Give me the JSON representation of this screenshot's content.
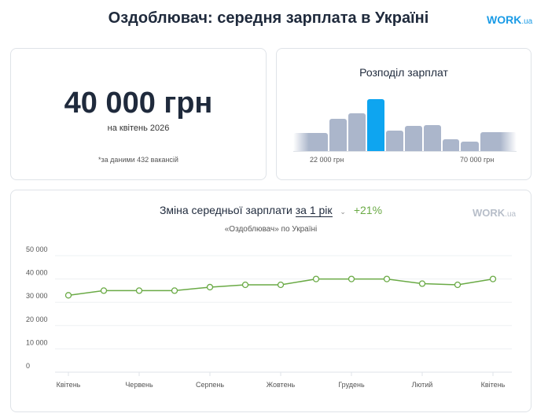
{
  "header": {
    "title": "Оздоблювач: середня зарплата в Україні",
    "logo": "WORK.ua"
  },
  "summary": {
    "amount": "40 000 грн",
    "period": "на квітень 2026",
    "note": "*за даними 432 вакансій"
  },
  "distribution": {
    "title": "Розподіл зарплат",
    "left_label": "22 000 грн",
    "right_label": "70 000 грн",
    "bars": [
      0.35,
      0.62,
      0.73,
      1.0,
      0.39,
      0.48,
      0.5,
      0.23,
      0.18,
      0.36
    ],
    "highlight_index": 3,
    "colors": {
      "bar": "#abb6cb",
      "highlight": "#0ea5f0"
    }
  },
  "trend": {
    "title": "Зміна середньої зарплати",
    "period": "за 1 рік",
    "change": "+21%",
    "subtitle": "«Оздоблювач» по Україні",
    "logo": "WORK.ua"
  },
  "chart_data": {
    "type": "line",
    "ylim": [
      0,
      50000
    ],
    "yticks": [
      "0",
      "10 000",
      "20 000",
      "30 000",
      "40 000",
      "50 000"
    ],
    "x_labels": [
      "Квітень",
      "Червень",
      "Серпень",
      "Жовтень",
      "Грудень",
      "Лютий",
      "Квітень"
    ],
    "values": [
      33000,
      35000,
      35000,
      35000,
      36500,
      37500,
      37500,
      40000,
      40000,
      40000,
      38000,
      37500,
      40000
    ],
    "grid": true,
    "color": "#6aaa45"
  }
}
